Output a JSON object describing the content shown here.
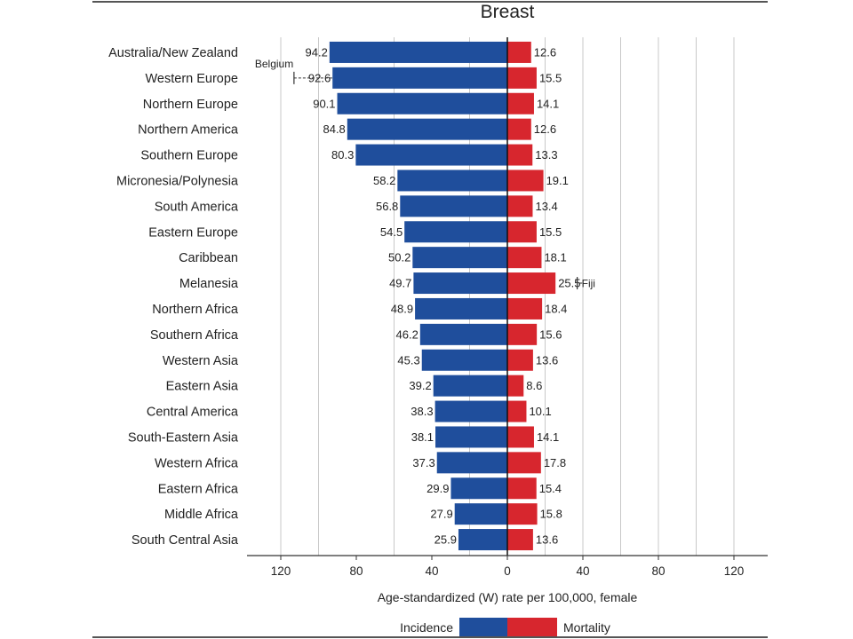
{
  "chart_data": {
    "type": "bar",
    "orientation": "horizontal-diverging",
    "title": "Breast",
    "xlabel": "Age-standardized (W) rate per 100,000, female",
    "xlim_left": [
      0,
      130
    ],
    "xlim_right": [
      0,
      130
    ],
    "x_ticks": [
      120,
      80,
      40,
      0,
      40,
      80,
      120
    ],
    "gridlines": true,
    "categories": [
      "Australia/New Zealand",
      "Western Europe",
      "Northern Europe",
      "Northern America",
      "Southern Europe",
      "Micronesia/Polynesia",
      "South America",
      "Eastern Europe",
      "Caribbean",
      "Melanesia",
      "Northern Africa",
      "Southern Africa",
      "Western Asia",
      "Eastern Asia",
      "Central America",
      "South-Eastern Asia",
      "Western Africa",
      "Eastern Africa",
      "Middle Africa",
      "South Central Asia"
    ],
    "series": [
      {
        "name": "Incidence",
        "color": "#1f4e9c",
        "side": "left",
        "values": [
          94.2,
          92.6,
          90.1,
          84.8,
          80.3,
          58.2,
          56.8,
          54.5,
          50.2,
          49.7,
          48.9,
          46.2,
          45.3,
          39.2,
          38.3,
          38.1,
          37.3,
          29.9,
          27.9,
          25.9
        ],
        "labels": [
          "94.2",
          "92.6",
          "90.1",
          "84.8",
          "80.3",
          "58.2",
          "56.8",
          "54.5",
          "50.2",
          "49.7",
          "48.9",
          "46.2",
          "45.3",
          "39.2",
          "38.3",
          "38.1",
          "37.3",
          "29.9",
          "27.9",
          "25.9"
        ]
      },
      {
        "name": "Mortality",
        "color": "#d7262e",
        "side": "right",
        "values": [
          12.6,
          15.5,
          14.1,
          12.6,
          13.3,
          19.1,
          13.4,
          15.5,
          18.1,
          25.5,
          18.4,
          15.6,
          13.6,
          8.6,
          10.1,
          14.1,
          17.8,
          15.4,
          15.8,
          13.6
        ],
        "labels": [
          "12.6",
          "15.5",
          "14.1",
          "12.6",
          "13.3",
          "19.1",
          "13.4",
          "15.5",
          "18.1",
          "25.5",
          "18.4",
          "15.6",
          "13.6",
          "8.6",
          "10.1",
          "14.1",
          "17.8",
          "15.4",
          "15.8",
          "13.6"
        ]
      }
    ],
    "annotations": [
      {
        "text": "Belgium",
        "category": "Western Europe",
        "side": "left",
        "value": 113
      },
      {
        "text": "Fiji",
        "category": "Melanesia",
        "side": "right",
        "value": 37
      }
    ],
    "legend": {
      "placement": "bottom",
      "items": [
        "Incidence",
        "Mortality"
      ]
    }
  }
}
